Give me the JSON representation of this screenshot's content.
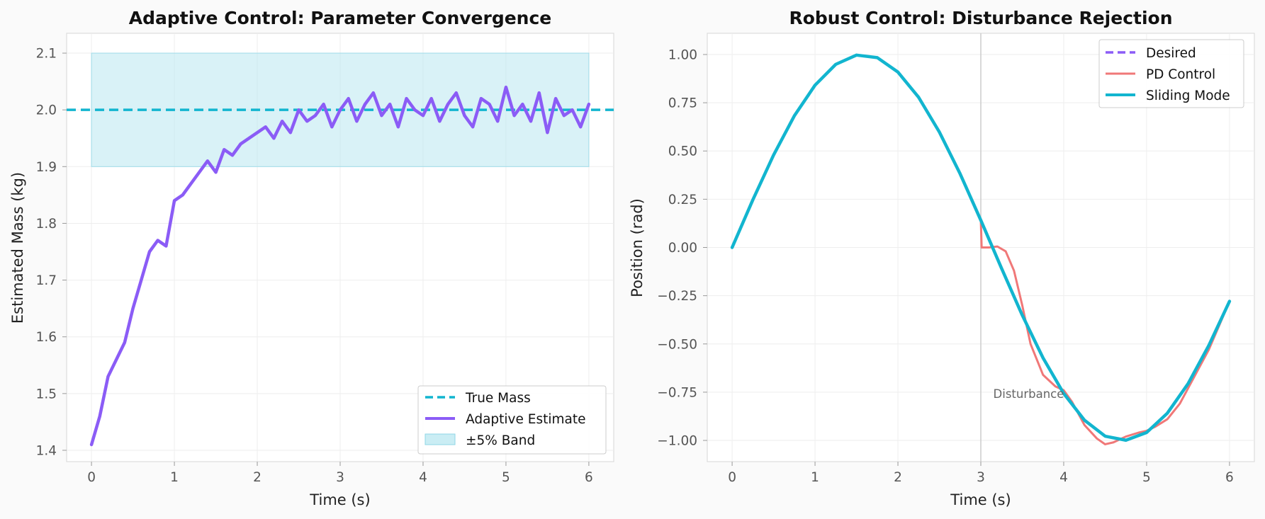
{
  "chart_data": [
    {
      "type": "line",
      "title": "Adaptive Control: Parameter Convergence",
      "xlabel": "Time (s)",
      "ylabel": "Estimated Mass (kg)",
      "xlim": [
        -0.3,
        6.3
      ],
      "ylim": [
        1.38,
        2.135
      ],
      "xticks": [
        0,
        1,
        2,
        3,
        4,
        5,
        6
      ],
      "yticks": [
        1.4,
        1.5,
        1.6,
        1.7,
        1.8,
        1.9,
        2.0,
        2.1
      ],
      "xtick_labels": [
        "0",
        "1",
        "2",
        "3",
        "4",
        "5",
        "6"
      ],
      "ytick_labels": [
        "1.4",
        "1.5",
        "1.6",
        "1.7",
        "1.8",
        "1.9",
        "2.0",
        "2.1"
      ],
      "grid": true,
      "legend_position": "lower-right",
      "band": {
        "name": "±5% Band",
        "x": [
          0,
          6
        ],
        "y": [
          1.9,
          2.1
        ],
        "color": "#b4e6f0"
      },
      "series": [
        {
          "name": "True Mass",
          "style": "dashed",
          "color": "#12b5cf",
          "x": [
            -0.3,
            6.3
          ],
          "y": [
            2.0,
            2.0
          ]
        },
        {
          "name": "Adaptive Estimate",
          "style": "solid",
          "color": "#8b5cf6",
          "x": [
            0,
            0.1,
            0.2,
            0.3,
            0.4,
            0.5,
            0.6,
            0.7,
            0.8,
            0.9,
            1.0,
            1.1,
            1.2,
            1.3,
            1.4,
            1.5,
            1.6,
            1.7,
            1.8,
            1.9,
            2.0,
            2.1,
            2.2,
            2.3,
            2.4,
            2.5,
            2.6,
            2.7,
            2.8,
            2.9,
            3.0,
            3.1,
            3.2,
            3.3,
            3.4,
            3.5,
            3.6,
            3.7,
            3.8,
            3.9,
            4.0,
            4.1,
            4.2,
            4.3,
            4.4,
            4.5,
            4.6,
            4.7,
            4.8,
            4.9,
            5.0,
            5.1,
            5.2,
            5.3,
            5.4,
            5.5,
            5.6,
            5.7,
            5.8,
            5.9,
            6.0
          ],
          "y": [
            1.41,
            1.46,
            1.53,
            1.56,
            1.59,
            1.65,
            1.7,
            1.75,
            1.77,
            1.76,
            1.84,
            1.85,
            1.87,
            1.89,
            1.91,
            1.89,
            1.93,
            1.92,
            1.94,
            1.95,
            1.96,
            1.97,
            1.95,
            1.98,
            1.96,
            2.0,
            1.98,
            1.99,
            2.01,
            1.97,
            2.0,
            2.02,
            1.98,
            2.01,
            2.03,
            1.99,
            2.01,
            1.97,
            2.02,
            2.0,
            1.99,
            2.02,
            1.98,
            2.01,
            2.03,
            1.99,
            1.97,
            2.02,
            2.01,
            1.98,
            2.04,
            1.99,
            2.01,
            1.98,
            2.03,
            1.96,
            2.02,
            1.99,
            2.0,
            1.97,
            2.01
          ]
        }
      ]
    },
    {
      "type": "line",
      "title": "Robust Control: Disturbance Rejection",
      "xlabel": "Time (s)",
      "ylabel": "Position (rad)",
      "xlim": [
        -0.3,
        6.3
      ],
      "ylim": [
        -1.11,
        1.11
      ],
      "xticks": [
        0,
        1,
        2,
        3,
        4,
        5,
        6
      ],
      "yticks": [
        -1.0,
        -0.75,
        -0.5,
        -0.25,
        0.0,
        0.25,
        0.5,
        0.75,
        1.0
      ],
      "xtick_labels": [
        "0",
        "1",
        "2",
        "3",
        "4",
        "5",
        "6"
      ],
      "ytick_labels": [
        "−1.00",
        "−0.75",
        "−0.50",
        "−0.25",
        "0.00",
        "0.25",
        "0.50",
        "0.75",
        "1.00"
      ],
      "grid": true,
      "legend_position": "upper-right",
      "vline_x": 3.0,
      "annotation": {
        "text": "Disturbance",
        "x": 3.15,
        "y": -0.78
      },
      "series": [
        {
          "name": "Desired",
          "style": "dashed",
          "color": "#8b5cf6",
          "x": [
            0,
            0.25,
            0.5,
            0.75,
            1.0,
            1.25,
            1.5,
            1.75,
            2.0,
            2.25,
            2.5,
            2.75,
            3.0,
            3.25,
            3.5,
            3.75,
            4.0,
            4.25,
            4.5,
            4.75,
            5.0,
            5.25,
            5.5,
            5.75,
            6.0
          ],
          "y": [
            0.0,
            0.247,
            0.479,
            0.682,
            0.841,
            0.949,
            0.997,
            0.984,
            0.909,
            0.778,
            0.598,
            0.382,
            0.141,
            -0.108,
            -0.351,
            -0.572,
            -0.757,
            -0.895,
            -0.978,
            -0.999,
            -0.959,
            -0.859,
            -0.706,
            -0.508,
            -0.279
          ]
        },
        {
          "name": "PD Control",
          "style": "solid",
          "color": "#f07878",
          "x": [
            0,
            0.25,
            0.5,
            0.75,
            1.0,
            1.25,
            1.5,
            1.75,
            2.0,
            2.25,
            2.5,
            2.75,
            3.0,
            3.01,
            3.1,
            3.2,
            3.3,
            3.4,
            3.5,
            3.6,
            3.75,
            3.9,
            4.0,
            4.1,
            4.25,
            4.4,
            4.5,
            4.6,
            4.75,
            4.9,
            5.0,
            5.1,
            5.25,
            5.4,
            5.5,
            5.75,
            6.0
          ],
          "y": [
            0.0,
            0.247,
            0.479,
            0.682,
            0.841,
            0.949,
            0.997,
            0.984,
            0.909,
            0.778,
            0.598,
            0.382,
            0.141,
            0.0,
            0.0,
            0.005,
            -0.02,
            -0.12,
            -0.3,
            -0.5,
            -0.66,
            -0.72,
            -0.74,
            -0.8,
            -0.92,
            -0.99,
            -1.02,
            -1.01,
            -0.98,
            -0.96,
            -0.95,
            -0.93,
            -0.89,
            -0.81,
            -0.73,
            -0.53,
            -0.28
          ]
        },
        {
          "name": "Sliding Mode",
          "style": "solid",
          "color": "#12b5cf",
          "x": [
            0,
            0.25,
            0.5,
            0.75,
            1.0,
            1.25,
            1.5,
            1.75,
            2.0,
            2.25,
            2.5,
            2.75,
            3.0,
            3.25,
            3.5,
            3.75,
            4.0,
            4.25,
            4.5,
            4.75,
            5.0,
            5.25,
            5.5,
            5.75,
            6.0
          ],
          "y": [
            0.0,
            0.247,
            0.479,
            0.682,
            0.841,
            0.949,
            0.997,
            0.984,
            0.909,
            0.778,
            0.598,
            0.382,
            0.141,
            -0.108,
            -0.351,
            -0.572,
            -0.757,
            -0.895,
            -0.978,
            -0.999,
            -0.959,
            -0.859,
            -0.706,
            -0.508,
            -0.279
          ]
        }
      ]
    }
  ]
}
